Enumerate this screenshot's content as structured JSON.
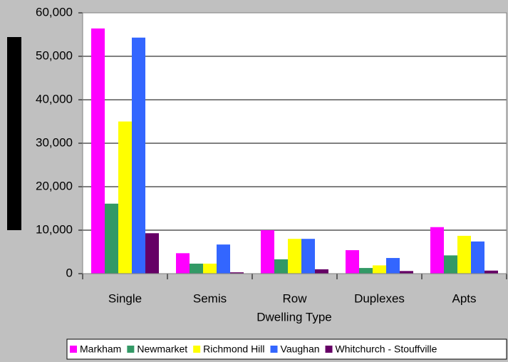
{
  "chart_data": {
    "type": "bar",
    "x_label": "Dwelling Type",
    "categories": [
      "Single",
      "Semis",
      "Row",
      "Duplexes",
      "Apts"
    ],
    "series": [
      {
        "name": "Markham",
        "color": "#ff00ff",
        "values": [
          56400,
          4700,
          10000,
          5400,
          10700
        ]
      },
      {
        "name": "Newmarket",
        "color": "#339966",
        "values": [
          16100,
          2300,
          3300,
          1300,
          4200
        ]
      },
      {
        "name": "Richmond Hill",
        "color": "#ffff00",
        "values": [
          35000,
          2300,
          8000,
          1900,
          8700
        ]
      },
      {
        "name": "Vaughan",
        "color": "#3366ff",
        "values": [
          54300,
          6700,
          8000,
          3600,
          7400
        ]
      },
      {
        "name": "Whitchurch - Stouffville",
        "color": "#660066",
        "values": [
          9300,
          300,
          1000,
          600,
          700
        ]
      }
    ],
    "ylim": [
      0,
      60000
    ],
    "yticks": [
      0,
      {
        "value": 10000,
        "label": "10,000"
      },
      {
        "value": 20000,
        "label": "20,000"
      },
      {
        "value": 30000,
        "label": "30,000"
      },
      {
        "value": 40000,
        "label": "40,000"
      },
      {
        "value": 50000,
        "label": "50,000"
      },
      {
        "value": 60000,
        "label": "60,000"
      }
    ],
    "grid": true,
    "legend": "bottom"
  }
}
